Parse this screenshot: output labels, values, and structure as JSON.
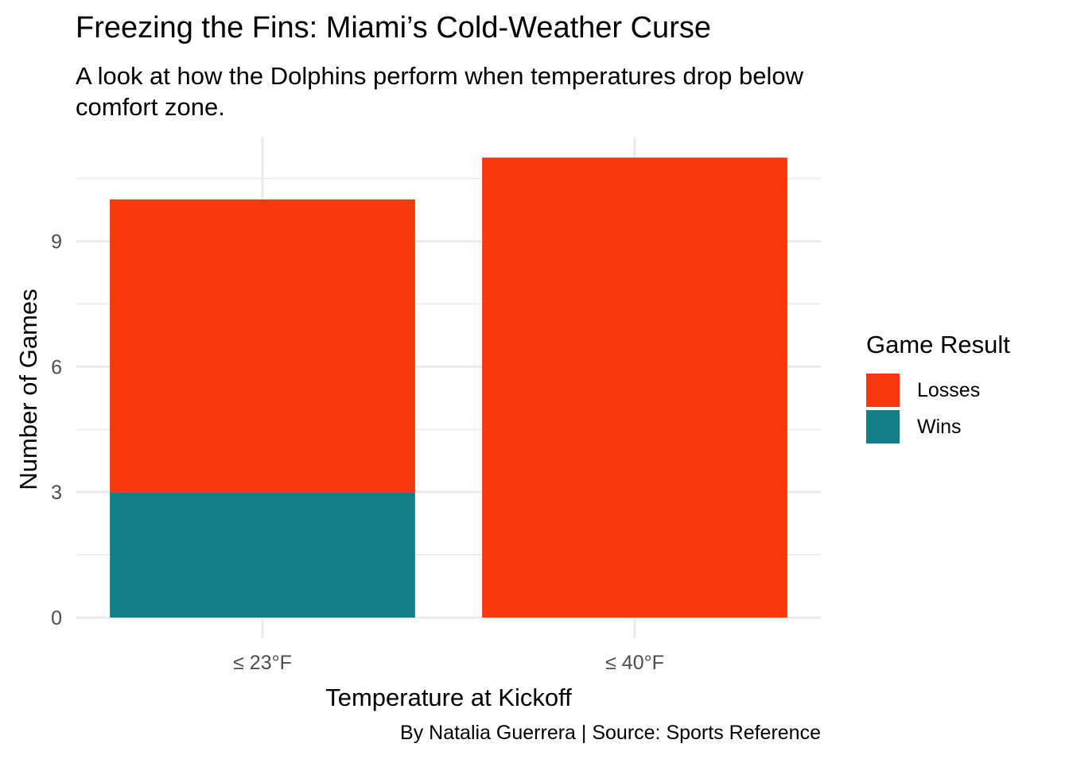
{
  "chart_data": {
    "type": "bar",
    "stacked": true,
    "title": "Freezing the Fins: Miami’s Cold-Weather Curse",
    "subtitle": "A look at how the Dolphins perform when temperatures drop below comfort zone.",
    "caption": "By Natalia Guerrera | Source: Sports Reference",
    "xlabel": "Temperature at Kickoff",
    "ylabel": "Number of Games",
    "categories": [
      "≤ 23°F",
      "≤ 40°F"
    ],
    "series": [
      {
        "name": "Wins",
        "values": [
          3,
          0
        ],
        "color": "#127e86"
      },
      {
        "name": "Losses",
        "values": [
          7,
          11
        ],
        "color": "#f6380a"
      }
    ],
    "ylim": [
      0,
      11.5
    ],
    "yticks": [
      0,
      3,
      6,
      9
    ],
    "legend_title": "Game Result",
    "legend_order": [
      "Losses",
      "Wins"
    ],
    "legend_position": "right",
    "grid": true,
    "grid_color": "#ebebeb"
  }
}
